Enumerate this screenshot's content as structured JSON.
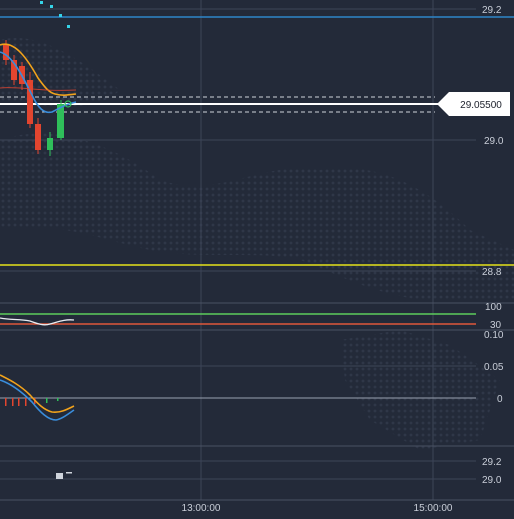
{
  "price_scale": {
    "labels": [
      "29.2",
      "29.0",
      "28.8"
    ],
    "current_price": "29.05500"
  },
  "indicator_rsi": {
    "levels": [
      "100",
      "30"
    ]
  },
  "indicator_macd": {
    "labels": [
      "0.10",
      "0.05",
      "0"
    ]
  },
  "bottom_panel": {
    "labels": [
      "29.2",
      "29.0"
    ]
  },
  "time_axis": {
    "labels": [
      "13:00:00",
      "15:00:00"
    ]
  },
  "colors": {
    "background": "#232a39",
    "bullish_candle": "#2fbf5a",
    "bearish_candle": "#e2452f",
    "ma_orange": "#f2a31b",
    "ma_blue": "#3a8ddb",
    "level_blue": "#2e86c9",
    "level_yellow": "#e6e21a",
    "rsi_upper": "#5ccc5c",
    "rsi_lower": "#e0583a",
    "price_tag_bg": "#ffffff"
  },
  "icons": [
    "dotted-world-map-background",
    "cyan-dot-markers"
  ]
}
